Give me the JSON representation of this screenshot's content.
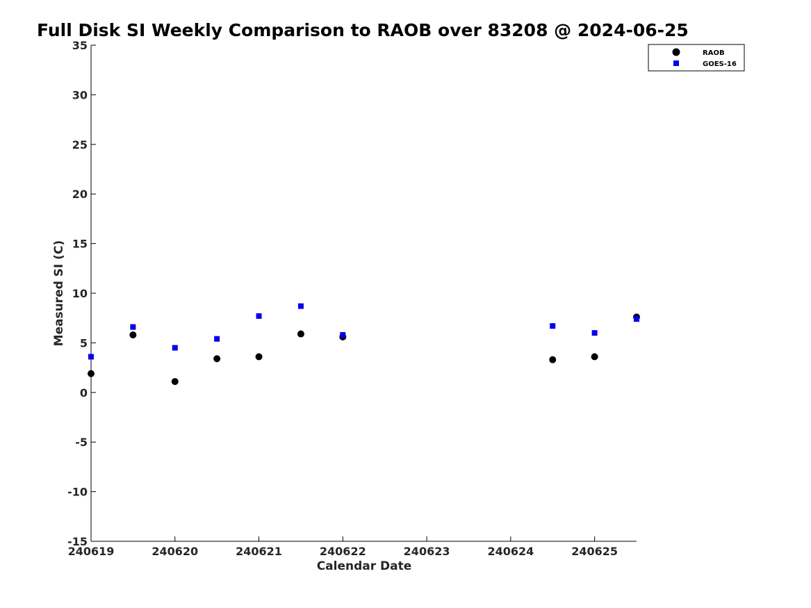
{
  "chart_data": {
    "type": "scatter",
    "title": "Full Disk SI Weekly Comparison to RAOB over 83208 @ 2024-06-25",
    "xlabel": "Calendar Date",
    "ylabel": "Measured SI (C)",
    "xlim": [
      "2024-06-19",
      "2024-06-25 12:00"
    ],
    "ylim": [
      -15,
      35
    ],
    "x_ticks": [
      "240619",
      "240620",
      "240621",
      "240622",
      "240623",
      "240624",
      "240625"
    ],
    "y_ticks": [
      "35",
      "30",
      "25",
      "20",
      "15",
      "10",
      "5",
      "0",
      "-5",
      "-10",
      "-15"
    ],
    "grid": false,
    "legend_position": "top-right",
    "series": [
      {
        "name": "RAOB",
        "marker": "circle",
        "color": "#000000",
        "points": [
          {
            "x": "2024-06-19 00:00",
            "y": 1.9
          },
          {
            "x": "2024-06-19 12:00",
            "y": 5.8
          },
          {
            "x": "2024-06-20 00:00",
            "y": 1.1
          },
          {
            "x": "2024-06-20 12:00",
            "y": 3.4
          },
          {
            "x": "2024-06-21 00:00",
            "y": 3.6
          },
          {
            "x": "2024-06-21 12:00",
            "y": 5.9
          },
          {
            "x": "2024-06-22 00:00",
            "y": 5.6
          },
          {
            "x": "2024-06-24 12:00",
            "y": 3.3
          },
          {
            "x": "2024-06-25 00:00",
            "y": 3.6
          },
          {
            "x": "2024-06-25 12:00",
            "y": 7.6
          }
        ]
      },
      {
        "name": "GOES-16",
        "marker": "square",
        "color": "#0000ee",
        "points": [
          {
            "x": "2024-06-19 00:00",
            "y": 3.6
          },
          {
            "x": "2024-06-19 12:00",
            "y": 6.6
          },
          {
            "x": "2024-06-20 00:00",
            "y": 4.5
          },
          {
            "x": "2024-06-20 12:00",
            "y": 5.4
          },
          {
            "x": "2024-06-21 00:00",
            "y": 7.7
          },
          {
            "x": "2024-06-21 12:00",
            "y": 8.7
          },
          {
            "x": "2024-06-22 00:00",
            "y": 5.8
          },
          {
            "x": "2024-06-24 12:00",
            "y": 6.7
          },
          {
            "x": "2024-06-25 00:00",
            "y": 6.0
          },
          {
            "x": "2024-06-25 12:00",
            "y": 7.4
          }
        ]
      }
    ]
  }
}
